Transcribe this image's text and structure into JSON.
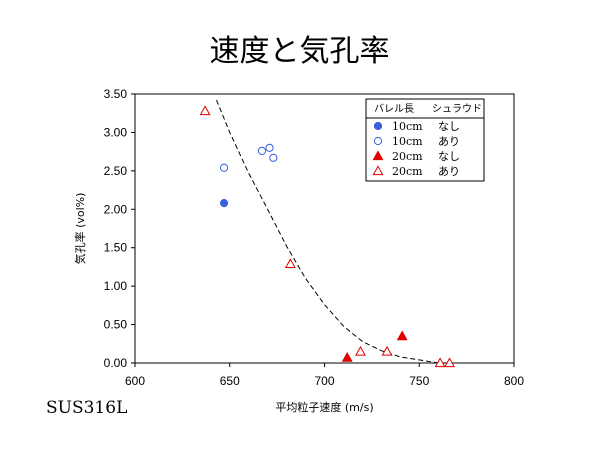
{
  "page": {
    "title": "速度と気孔率",
    "footer": "SUS316L"
  },
  "chart_data": {
    "type": "scatter",
    "xlabel": "平均粒子速度 (m/s)",
    "ylabel": "気孔率 (vol%)",
    "xlim": [
      600,
      800
    ],
    "ylim": [
      0.0,
      3.5
    ],
    "x_ticks": [
      "600",
      "650",
      "700",
      "750",
      "800"
    ],
    "y_ticks": [
      "0.00",
      "0.50",
      "1.00",
      "1.50",
      "2.00",
      "2.50",
      "3.00",
      "3.50"
    ],
    "legend": {
      "placement": "top-right",
      "header_barrel": "バレル長",
      "header_shroud": "シュラウド",
      "entries": [
        {
          "barrel": "10cm",
          "shroud": "なし",
          "marker": "circle",
          "filled": true,
          "color": "#3b5fe0"
        },
        {
          "barrel": "10cm",
          "shroud": "あり",
          "marker": "circle",
          "filled": false,
          "color": "#3b5fe0"
        },
        {
          "barrel": "20cm",
          "shroud": "なし",
          "marker": "triangle",
          "filled": true,
          "color": "#e00000"
        },
        {
          "barrel": "20cm",
          "shroud": "あり",
          "marker": "triangle",
          "filled": false,
          "color": "#e00000"
        }
      ]
    },
    "series": [
      {
        "legend_index": 0,
        "points": [
          [
            647,
            2.08
          ]
        ]
      },
      {
        "legend_index": 1,
        "points": [
          [
            647,
            2.54
          ],
          [
            667,
            2.76
          ],
          [
            671,
            2.8
          ],
          [
            673,
            2.67
          ]
        ]
      },
      {
        "legend_index": 2,
        "points": [
          [
            712,
            0.07
          ],
          [
            741,
            0.35
          ]
        ]
      },
      {
        "legend_index": 3,
        "points": [
          [
            637,
            3.28
          ],
          [
            682,
            1.29
          ],
          [
            719,
            0.15
          ],
          [
            733,
            0.15
          ],
          [
            761,
            0.0
          ],
          [
            766,
            0.0
          ]
        ]
      }
    ],
    "trend_line": {
      "style": "dashed",
      "points": [
        [
          643,
          3.42
        ],
        [
          650,
          3.0
        ],
        [
          660,
          2.47
        ],
        [
          670,
          2.0
        ],
        [
          680,
          1.52
        ],
        [
          690,
          1.1
        ],
        [
          700,
          0.76
        ],
        [
          710,
          0.48
        ],
        [
          720,
          0.28
        ],
        [
          730,
          0.16
        ],
        [
          740,
          0.08
        ],
        [
          750,
          0.04
        ],
        [
          760,
          0.0
        ]
      ]
    }
  }
}
